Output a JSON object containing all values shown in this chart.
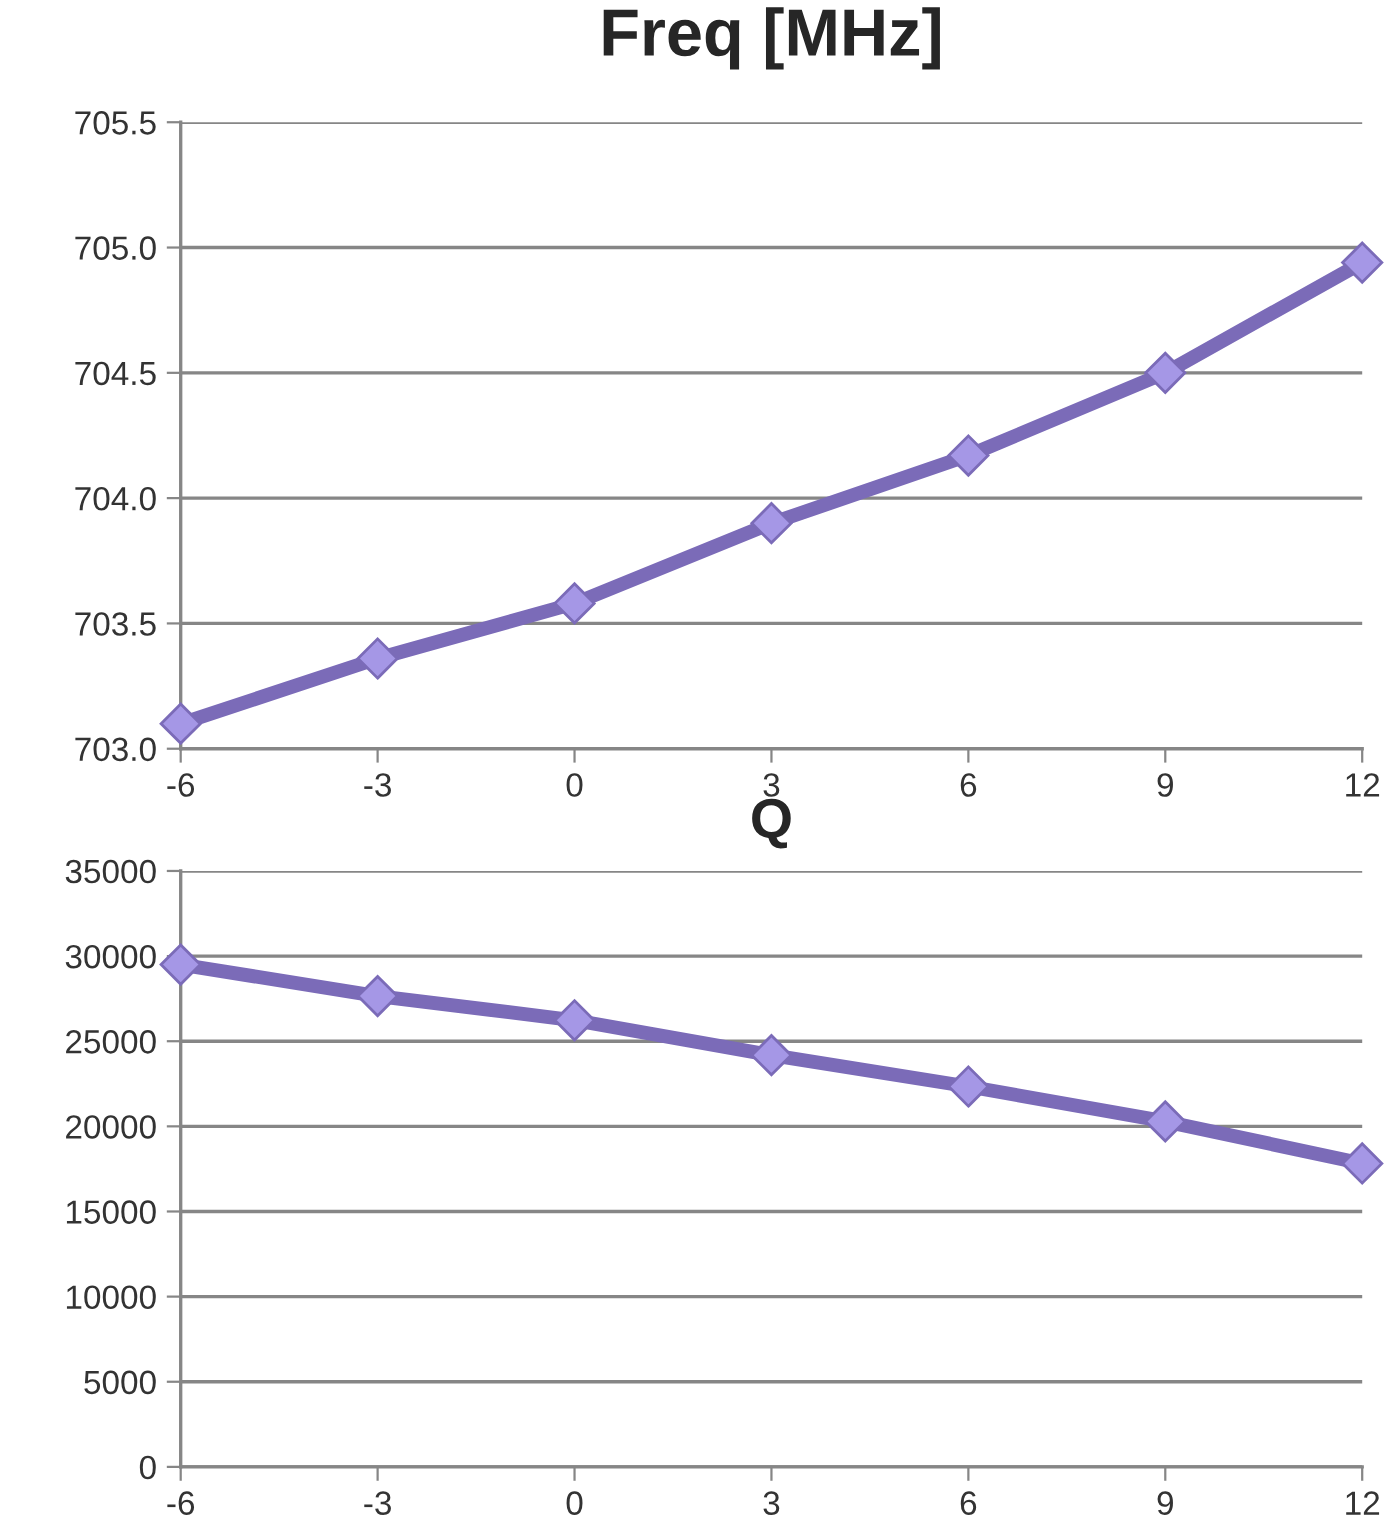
{
  "chart_data": [
    {
      "type": "line",
      "title": "Freq [MHz]",
      "x": [
        -6,
        -3,
        0,
        3,
        6,
        9,
        12
      ],
      "xlim": [
        -6,
        12
      ],
      "xticks": [
        -6,
        -3,
        0,
        3,
        6,
        9,
        12
      ],
      "ylim": [
        703.0,
        705.5
      ],
      "yticks": [
        {
          "value": 703.0,
          "label": "703.0"
        },
        {
          "value": 703.5,
          "label": "703.5"
        },
        {
          "value": 704.0,
          "label": "704.0"
        },
        {
          "value": 704.5,
          "label": "704.5"
        },
        {
          "value": 705.0,
          "label": "705.0"
        },
        {
          "value": 705.5,
          "label": "705.5"
        }
      ],
      "grid": "y",
      "marker": "diamond",
      "line_style": "solid",
      "series": [
        {
          "color": "#7b6bb8",
          "values": [
            703.1,
            703.36,
            703.58,
            703.9,
            704.17,
            704.5,
            704.94
          ]
        }
      ]
    },
    {
      "type": "line",
      "title": "Q",
      "x": [
        -6,
        -3,
        0,
        3,
        6,
        9,
        12
      ],
      "xlim": [
        -6,
        12
      ],
      "xticks": [
        -6,
        -3,
        0,
        3,
        6,
        9,
        12
      ],
      "ylim": [
        0,
        35000
      ],
      "yticks": [
        0,
        5000,
        10000,
        15000,
        20000,
        25000,
        30000,
        35000
      ],
      "grid": "y",
      "marker": "diamond",
      "line_style": "solid",
      "series": [
        {
          "color": "#7b6bb8",
          "values": [
            29500,
            27650,
            26230,
            24180,
            22340,
            20290,
            17820
          ]
        }
      ]
    }
  ]
}
